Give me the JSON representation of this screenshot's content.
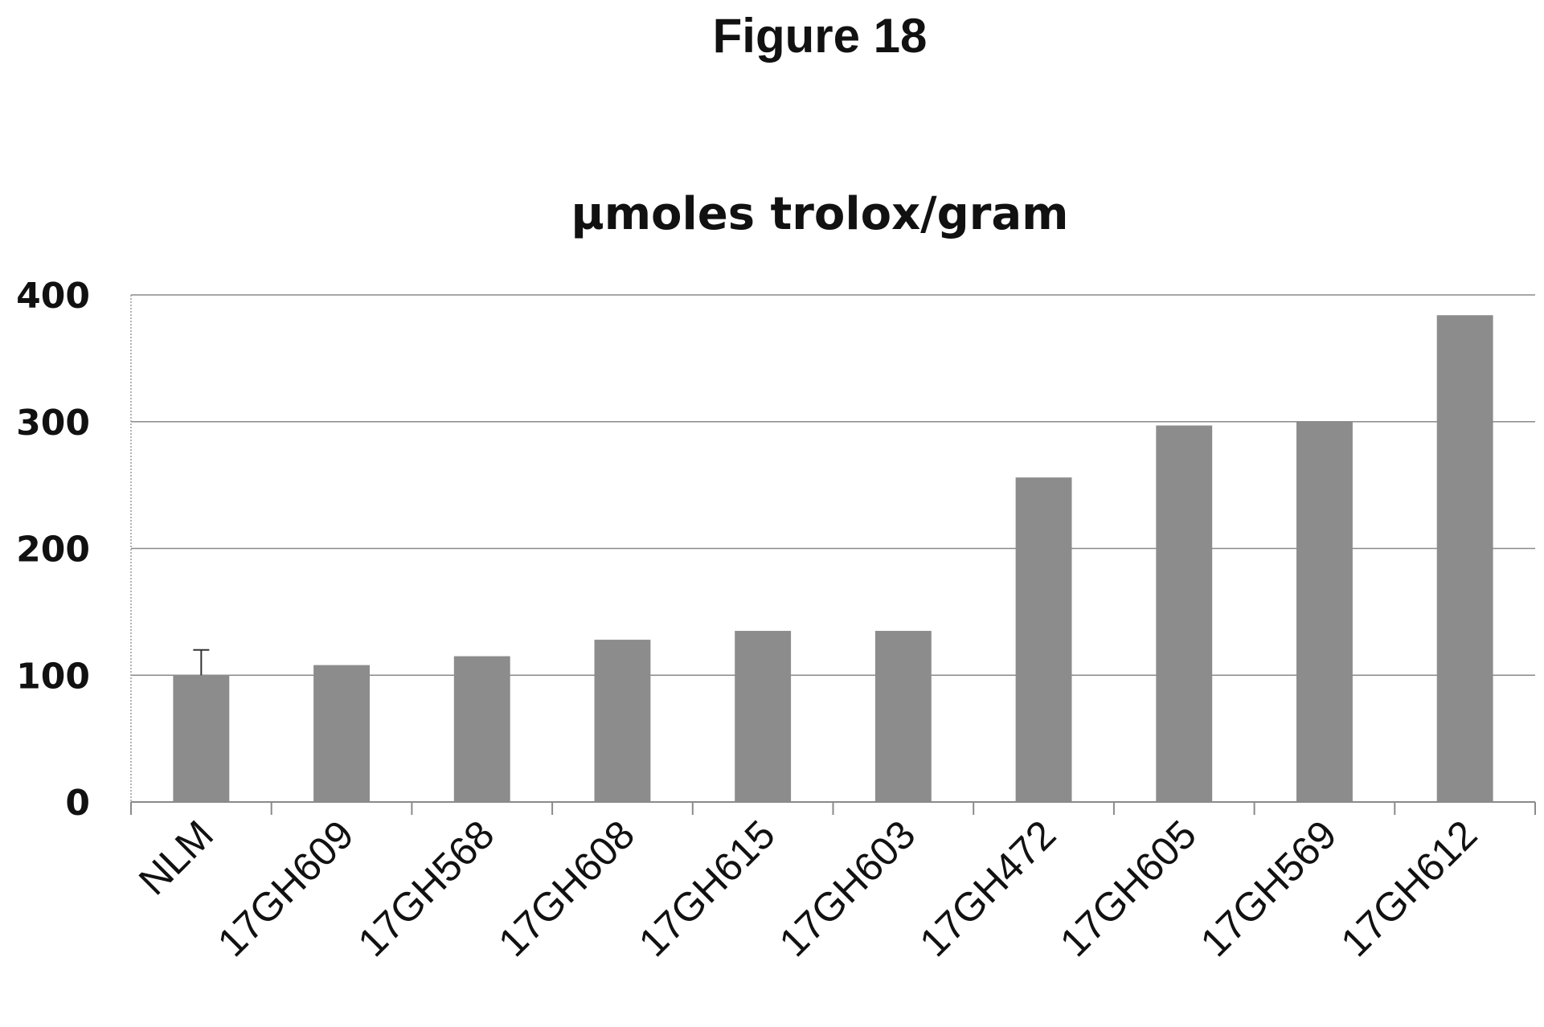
{
  "figure_label": "Figure 18",
  "chart_data": {
    "type": "bar",
    "title": "µmoles trolox/gram",
    "xlabel": "",
    "ylabel": "",
    "categories": [
      "NLM",
      "17GH609",
      "17GH568",
      "17GH608",
      "17GH615",
      "17GH603",
      "17GH472",
      "17GH605",
      "17GH569",
      "17GH612"
    ],
    "values": [
      100,
      108,
      115,
      128,
      135,
      135,
      256,
      297,
      300,
      384
    ],
    "error_bars": [
      {
        "category": "NLM",
        "upper": 120
      }
    ],
    "ylim": [
      0,
      400
    ],
    "yticks": [
      0,
      100,
      200,
      300,
      400
    ],
    "grid": true,
    "legend": "none",
    "bar_color": "#8c8c8c"
  }
}
